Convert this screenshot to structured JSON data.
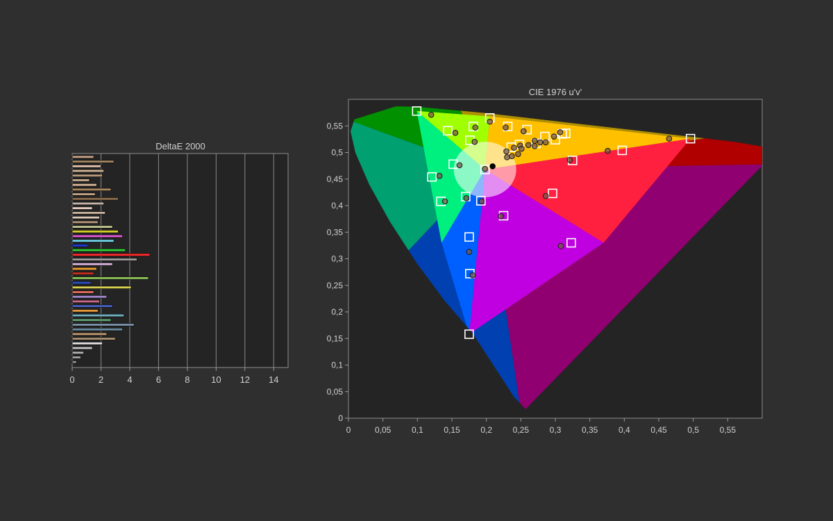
{
  "chart_data": [
    {
      "type": "bar",
      "orientation": "horizontal",
      "title": "DeltaE 2000",
      "xlim": [
        0,
        15
      ],
      "xticks": [
        0,
        2,
        4,
        6,
        8,
        10,
        12,
        14
      ],
      "grid": true,
      "values": [
        1.5,
        2.9,
        2.0,
        2.2,
        2.1,
        1.2,
        1.7,
        2.7,
        1.6,
        3.2,
        2.2,
        1.4,
        2.3,
        1.9,
        1.8,
        2.8,
        3.2,
        3.5,
        2.9,
        1.1,
        3.7,
        5.4,
        4.5,
        2.8,
        1.7,
        1.5,
        5.3,
        1.3,
        4.1,
        1.5,
        2.4,
        1.9,
        2.8,
        1.8,
        3.6,
        2.7,
        4.3,
        3.5,
        2.4,
        3.0,
        2.1,
        1.4,
        0.8,
        0.6,
        0.3
      ],
      "colors": [
        "#c9a389",
        "#a08460",
        "#e3c2ae",
        "#d2b495",
        "#b89a7e",
        "#c7ac8f",
        "#d9b699",
        "#a9885e",
        "#bf9f80",
        "#8e6f4f",
        "#c4b3a8",
        "#e8d2c0",
        "#c9b39d",
        "#dcc9b8",
        "#b39579",
        "#c0c28e",
        "#d5d02a",
        "#e25ad8",
        "#6fd0e8",
        "#1b3bd6",
        "#2fcf33",
        "#ff2a2a",
        "#9a9a9a",
        "#ddb7e0",
        "#f0a030",
        "#c4301e",
        "#8dc558",
        "#2850c0",
        "#d5d050",
        "#e06a5a",
        "#a58ad0",
        "#c86888",
        "#4860c0",
        "#e89838",
        "#70b0c0",
        "#60a070",
        "#7890a8",
        "#6a8ca0",
        "#c09870",
        "#aa9070",
        "#e0e0e0",
        "#c8c8c8",
        "#b0b0b0",
        "#a0a0a0",
        "#909090"
      ]
    },
    {
      "type": "scatter",
      "title": "CIE 1976 u'v'",
      "xlim": [
        0,
        0.6
      ],
      "ylim": [
        0,
        0.6
      ],
      "xticks": [
        "0",
        "0,05",
        "0,1",
        "0,15",
        "0,2",
        "0,25",
        "0,3",
        "0,35",
        "0,4",
        "0,45",
        "0,5",
        "0,55"
      ],
      "yticks": [
        "0",
        "0,05",
        "0,1",
        "0,15",
        "0,2",
        "0,25",
        "0,3",
        "0,35",
        "0,4",
        "0,45",
        "0,5",
        "0,55"
      ],
      "gamut_triangle": [
        [
          0.496,
          0.526
        ],
        [
          0.099,
          0.578
        ],
        [
          0.175,
          0.158
        ]
      ],
      "white_point": [
        0.198,
        0.468
      ],
      "targets": [
        [
          0.099,
          0.578
        ],
        [
          0.205,
          0.565
        ],
        [
          0.144,
          0.541
        ],
        [
          0.181,
          0.549
        ],
        [
          0.231,
          0.549
        ],
        [
          0.259,
          0.543
        ],
        [
          0.285,
          0.53
        ],
        [
          0.31,
          0.535
        ],
        [
          0.315,
          0.536
        ],
        [
          0.3,
          0.524
        ],
        [
          0.272,
          0.517
        ],
        [
          0.248,
          0.515
        ],
        [
          0.236,
          0.51
        ],
        [
          0.176,
          0.523
        ],
        [
          0.496,
          0.526
        ],
        [
          0.397,
          0.504
        ],
        [
          0.325,
          0.485
        ],
        [
          0.152,
          0.478
        ],
        [
          0.121,
          0.454
        ],
        [
          0.198,
          0.468
        ],
        [
          0.17,
          0.417
        ],
        [
          0.192,
          0.409
        ],
        [
          0.134,
          0.408
        ],
        [
          0.296,
          0.423
        ],
        [
          0.225,
          0.381
        ],
        [
          0.175,
          0.341
        ],
        [
          0.323,
          0.33
        ],
        [
          0.176,
          0.272
        ],
        [
          0.175,
          0.158
        ]
      ],
      "measured": [
        [
          0.12,
          0.571
        ],
        [
          0.205,
          0.558
        ],
        [
          0.155,
          0.537
        ],
        [
          0.184,
          0.547
        ],
        [
          0.228,
          0.547
        ],
        [
          0.254,
          0.54
        ],
        [
          0.183,
          0.52
        ],
        [
          0.27,
          0.522
        ],
        [
          0.278,
          0.519
        ],
        [
          0.286,
          0.519
        ],
        [
          0.298,
          0.53
        ],
        [
          0.307,
          0.538
        ],
        [
          0.249,
          0.513
        ],
        [
          0.261,
          0.514
        ],
        [
          0.27,
          0.512
        ],
        [
          0.24,
          0.509
        ],
        [
          0.251,
          0.507
        ],
        [
          0.229,
          0.502
        ],
        [
          0.246,
          0.497
        ],
        [
          0.23,
          0.491
        ],
        [
          0.237,
          0.493
        ],
        [
          0.465,
          0.526
        ],
        [
          0.376,
          0.503
        ],
        [
          0.321,
          0.486
        ],
        [
          0.161,
          0.476
        ],
        [
          0.132,
          0.456
        ],
        [
          0.209,
          0.474
        ],
        [
          0.198,
          0.469
        ],
        [
          0.14,
          0.408
        ],
        [
          0.171,
          0.414
        ],
        [
          0.193,
          0.408
        ],
        [
          0.286,
          0.418
        ],
        [
          0.221,
          0.38
        ],
        [
          0.175,
          0.313
        ],
        [
          0.308,
          0.324
        ],
        [
          0.18,
          0.269
        ]
      ]
    }
  ]
}
